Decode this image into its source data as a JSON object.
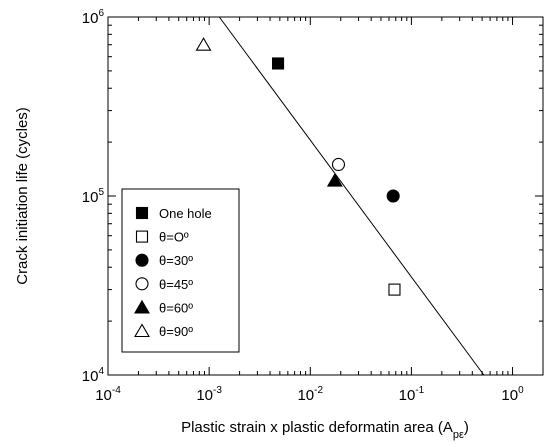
{
  "chart_data": {
    "type": "scatter",
    "xscale": "log",
    "yscale": "log",
    "xlim": [
      0.0001,
      2
    ],
    "ylim": [
      10000,
      1000000
    ],
    "xlabel": "Plastic strain x plastic deformatin area (A",
    "xlabel_sub": "pε",
    "xlabel_close": ")",
    "ylabel": "Crack initiation life (cycles)",
    "x_ticks": [
      {
        "value": 0.0001,
        "base": "10",
        "exp": "-4"
      },
      {
        "value": 0.001,
        "base": "10",
        "exp": "-3"
      },
      {
        "value": 0.01,
        "base": "10",
        "exp": "-2"
      },
      {
        "value": 0.1,
        "base": "10",
        "exp": "-1"
      },
      {
        "value": 1,
        "base": "10",
        "exp": "0"
      }
    ],
    "y_ticks": [
      {
        "value": 10000,
        "base": "10",
        "exp": "4"
      },
      {
        "value": 100000,
        "base": "10",
        "exp": "5"
      },
      {
        "value": 1000000,
        "base": "10",
        "exp": "6"
      }
    ],
    "series": [
      {
        "name": "One hole",
        "marker": "square",
        "filled": true,
        "points": [
          {
            "x": 0.0048,
            "y": 550000
          }
        ]
      },
      {
        "name": "θ=Oº",
        "marker": "square",
        "filled": false,
        "points": [
          {
            "x": 0.068,
            "y": 30000
          }
        ]
      },
      {
        "name": "θ=30º",
        "marker": "circle",
        "filled": true,
        "points": [
          {
            "x": 0.066,
            "y": 100000
          }
        ]
      },
      {
        "name": "θ=45º",
        "marker": "circle",
        "filled": false,
        "points": [
          {
            "x": 0.019,
            "y": 150000
          }
        ]
      },
      {
        "name": "θ=60º",
        "marker": "triangle",
        "filled": true,
        "points": [
          {
            "x": 0.0175,
            "y": 122000
          }
        ]
      },
      {
        "name": "θ=90º",
        "marker": "triangle",
        "filled": false,
        "points": [
          {
            "x": 0.00088,
            "y": 700000
          }
        ]
      }
    ],
    "fit_line": {
      "points": [
        {
          "x": 0.00126,
          "y": 1000000
        },
        {
          "x": 0.52,
          "y": 10000
        }
      ]
    },
    "legend_position": "bottom-left",
    "grid": false
  }
}
